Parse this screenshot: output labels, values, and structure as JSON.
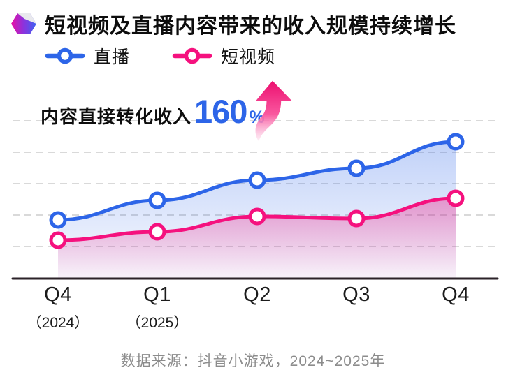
{
  "header": {
    "title": "短视频及直播内容带来的收入规模持续增长",
    "icon": "gem-icon"
  },
  "legend": [
    {
      "label": "直播",
      "color": "#2D65E8"
    },
    {
      "label": "短视频",
      "color": "#F5117E"
    }
  ],
  "annotation": {
    "prefix": "内容直接转化收入",
    "value": "160",
    "unit": "%",
    "value_color": "#2D65E8",
    "arrow": "pink-up-arrow"
  },
  "x_axis": {
    "labels": [
      {
        "quarter": "Q4",
        "year": "（2024）"
      },
      {
        "quarter": "Q1",
        "year": "（2025）"
      },
      {
        "quarter": "Q2",
        "year": ""
      },
      {
        "quarter": "Q3",
        "year": ""
      },
      {
        "quarter": "Q4",
        "year": ""
      }
    ]
  },
  "source": "数据来源：抖音小游戏，2024~2025年",
  "colors": {
    "accent_blue": "#2D65E8",
    "accent_pink": "#F5117E",
    "gridline": "#D9D9D9",
    "axis": "#2B2228",
    "title_text": "#0D0D0D",
    "source_text": "#8C8C8C"
  },
  "chart_data": {
    "type": "line",
    "categories": [
      "Q4 (2024)",
      "Q1 (2025)",
      "Q2 (2025)",
      "Q3 (2025)",
      "Q4 (2025)"
    ],
    "series": [
      {
        "name": "直播",
        "color": "#2D65E8",
        "values": [
          84,
          112,
          141,
          158,
          196
        ]
      },
      {
        "name": "短视频",
        "color": "#F5117E",
        "values": [
          55,
          67,
          89,
          86,
          115
        ]
      }
    ],
    "units": "relative height (no y-axis scale shown in figure)",
    "ylim": [
      0,
      239
    ],
    "title": "短视频及直播内容带来的收入规模持续增长",
    "xlabel": "",
    "ylabel": "",
    "grid": "horizontal dashed, 5 lines",
    "legend_position": "top-left",
    "area_fill": "gradient under each line, fading downward",
    "annotation": "内容直接转化收入160%"
  }
}
